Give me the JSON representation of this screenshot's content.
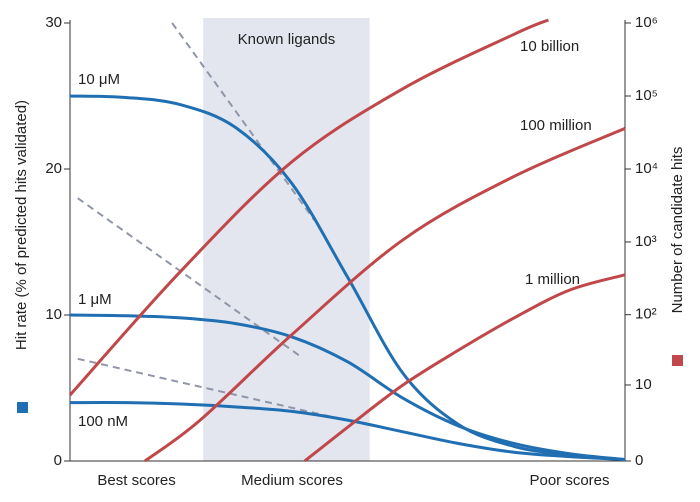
{
  "chart_data": {
    "type": "line",
    "ylabel": "Hit rate (% of predicted hits validated)",
    "y2label": "Number of candidate hits",
    "shaded_region": {
      "label": "Known ligands",
      "xlim": [
        24,
        54
      ],
      "color": "#e3e6ef"
    },
    "xlim": [
      0,
      100
    ],
    "xticks": [
      {
        "value": 12,
        "label": "Best scores"
      },
      {
        "value": 40,
        "label": "Medium scores"
      },
      {
        "value": 90,
        "label": "Poor scores"
      }
    ],
    "ylim": [
      0,
      30
    ],
    "yticks": [
      0,
      10,
      20,
      30
    ],
    "y2lim": [
      0,
      1000000
    ],
    "y2scale": "symlog",
    "y2ticks": [
      0,
      10,
      {
        "value": 100,
        "label": "10²"
      },
      {
        "value": 1000,
        "label": "10³"
      },
      {
        "value": 10000,
        "label": "10⁴"
      },
      {
        "value": 100000,
        "label": "10⁵"
      },
      {
        "value": 1000000,
        "label": "10⁶"
      }
    ],
    "x": [
      0,
      10,
      20,
      30,
      40,
      50,
      60,
      70,
      80,
      90,
      100
    ],
    "series": [
      {
        "name": "10 μM",
        "color": "#1f6fb2",
        "values": [
          25,
          24.9,
          24.4,
          22.8,
          19,
          12.6,
          6,
          2.5,
          1,
          0.4,
          0.1
        ]
      },
      {
        "name": "1 μM",
        "color": "#1f6fb2",
        "values": [
          10,
          9.95,
          9.8,
          9.4,
          8.5,
          6.8,
          4.3,
          2.4,
          1.2,
          0.5,
          0.1
        ]
      },
      {
        "name": "100 nM",
        "color": "#1f6fb2",
        "values": [
          4,
          4,
          3.9,
          3.7,
          3.4,
          2.8,
          2,
          1.2,
          0.6,
          0.3,
          0.1
        ]
      },
      {
        "name": "10 billion",
        "color": "#c0484a",
        "axis": "y2",
        "x": [
          0,
          20,
          40,
          60,
          80,
          86.2
        ],
        "values": [
          7,
          400,
          12600,
          126000,
          700000,
          1100000
        ]
      },
      {
        "name": "100 million",
        "color": "#c0484a",
        "axis": "y2",
        "x": [
          13.5,
          23.4,
          40,
          60,
          80,
          100
        ],
        "values": [
          0,
          2.6,
          53,
          1070,
          7900,
          36000
        ]
      },
      {
        "name": "1 million",
        "color": "#c0484a",
        "axis": "y2",
        "x": [
          42.3,
          50.5,
          60,
          70,
          80,
          90,
          100
        ],
        "values": [
          0,
          2.1,
          10,
          32,
          90,
          218,
          354
        ]
      }
    ],
    "reference_lines": [
      {
        "color": "#9096a8",
        "x": [
          18.4,
          44
        ],
        "values": [
          30,
          16.5
        ]
      },
      {
        "color": "#9096a8",
        "x": [
          1.4,
          41.4
        ],
        "values": [
          18,
          7.2
        ]
      },
      {
        "color": "#9096a8",
        "x": [
          1.4,
          48.6
        ],
        "values": [
          7,
          2.9
        ]
      }
    ]
  }
}
